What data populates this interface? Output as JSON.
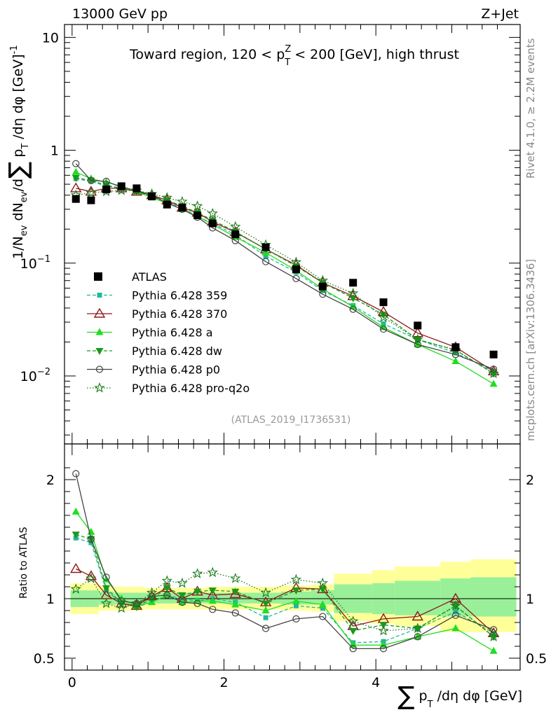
{
  "header": {
    "left": "13000 GeV pp",
    "right": "Z+Jet"
  },
  "side_labels": {
    "top": "Rivet 4.1.0, ≥ 2.2M events",
    "bottom": "mcplots.cern.ch [arXiv:1306.3436]"
  },
  "chart_data": [
    {
      "type": "line",
      "yscale": "log",
      "title": "Toward region, 120 < pT^Z < 200 [GeV], high thrust",
      "title_parts": {
        "lead": "Toward region, 120 < p",
        "sup": "Z",
        "sub": "T",
        "tail": " < 200 [GeV], high thrust"
      },
      "ylabel": "1/N_ev dN_ev/d∑ p_T /dη dφ [GeV]^-1",
      "ylabel_parts": {
        "a": "1/N",
        "a_sub": "ev",
        "b": " dN",
        "b_sub": "ev",
        "c": "/d",
        "sum": "∑",
        "d": " p",
        "d_sub": "T",
        "e": " /dη dφ  [GeV]",
        "e_sup": "-1"
      },
      "analysis_id": "(ATLAS_2019_I1736531)",
      "xlim": [
        -0.1,
        5.9
      ],
      "ylim": [
        0.0025,
        13
      ],
      "y_tick_labels": [
        {
          "value": 0.01,
          "base": "10",
          "exp": "−2"
        },
        {
          "value": 0.1,
          "base": "10",
          "exp": "−1"
        },
        {
          "value": 1,
          "base": "1",
          "exp": ""
        },
        {
          "value": 10,
          "base": "10",
          "exp": ""
        }
      ],
      "x": [
        0.05,
        0.25,
        0.45,
        0.65,
        0.85,
        1.05,
        1.25,
        1.45,
        1.65,
        1.85,
        2.15,
        2.55,
        2.95,
        3.3,
        3.7,
        4.1,
        4.55,
        5.05,
        5.55
      ],
      "atlas": [
        0.37,
        0.36,
        0.45,
        0.48,
        0.46,
        0.39,
        0.33,
        0.31,
        0.265,
        0.225,
        0.18,
        0.138,
        0.088,
        0.062,
        0.067,
        0.045,
        0.028,
        0.018,
        0.0155
      ],
      "legend": {
        "position": "left",
        "entries": [
          "ATLAS",
          "Pythia 6.428 359",
          "Pythia 6.428 370",
          "Pythia 6.428 a",
          "Pythia 6.428 dw",
          "Pythia 6.428 p0",
          "Pythia 6.428 pro-q2o"
        ]
      },
      "series": [
        {
          "name": "Pythia 6.428 359",
          "color": "#1fb89a",
          "dash": "5,3",
          "marker": "square-small",
          "values": [
            0.56,
            0.53,
            0.48,
            0.46,
            0.43,
            0.38,
            0.34,
            0.31,
            0.26,
            0.225,
            0.178,
            0.115,
            0.083,
            0.057,
            0.042,
            0.029,
            0.021,
            0.016,
            0.011
          ]
        },
        {
          "name": "Pythia 6.428 370",
          "color": "#8b1a1a",
          "dash": "",
          "marker": "triangle-open",
          "values": [
            0.46,
            0.43,
            0.46,
            0.46,
            0.43,
            0.4,
            0.36,
            0.31,
            0.28,
            0.232,
            0.188,
            0.133,
            0.096,
            0.067,
            0.051,
            0.037,
            0.024,
            0.018,
            0.011
          ]
        },
        {
          "name": "Pythia 6.428 a",
          "color": "#22dd22",
          "dash": "",
          "marker": "triangle-filled",
          "values": [
            0.64,
            0.56,
            0.52,
            0.48,
            0.43,
            0.38,
            0.34,
            0.3,
            0.26,
            0.22,
            0.17,
            0.124,
            0.086,
            0.059,
            0.041,
            0.027,
            0.019,
            0.0135,
            0.0085
          ]
        },
        {
          "name": "Pythia 6.428 dw",
          "color": "#1a9a1a",
          "dash": "5,3",
          "marker": "triangle-down",
          "values": [
            0.57,
            0.54,
            0.49,
            0.46,
            0.43,
            0.39,
            0.36,
            0.32,
            0.28,
            0.24,
            0.19,
            0.133,
            0.094,
            0.067,
            0.049,
            0.035,
            0.021,
            0.017,
            0.0105
          ]
        },
        {
          "name": "Pythia 6.428 p0",
          "color": "#444444",
          "dash": "",
          "marker": "circle-open",
          "values": [
            0.76,
            0.54,
            0.53,
            0.47,
            0.44,
            0.4,
            0.34,
            0.3,
            0.255,
            0.205,
            0.158,
            0.103,
            0.073,
            0.053,
            0.039,
            0.026,
            0.019,
            0.0155,
            0.0115
          ]
        },
        {
          "name": "Pythia 6.428 pro-q2o",
          "color": "#1a7a1a",
          "dash": "1.5,2.5",
          "marker": "star-open",
          "values": [
            0.4,
            0.42,
            0.43,
            0.44,
            0.44,
            0.41,
            0.38,
            0.35,
            0.32,
            0.275,
            0.21,
            0.145,
            0.102,
            0.07,
            0.054,
            0.033,
            0.021,
            0.017,
            0.0105
          ]
        }
      ]
    },
    {
      "type": "line",
      "title": "",
      "ylabel": "Ratio to ATLAS",
      "xlabel": "∑ p_T /dη dφ [GeV]",
      "xlabel_parts": {
        "sum": "∑",
        "a": " p",
        "a_sub": "T",
        "b": " /dη dφ [GeV]"
      },
      "xlim": [
        -0.1,
        5.9
      ],
      "ylim": [
        0.4,
        2.3
      ],
      "x_ticks": [
        0,
        2,
        4
      ],
      "y_tick_labels": [
        0.5,
        1,
        2
      ],
      "band_edges": [
        -0.02,
        0.15,
        0.35,
        0.55,
        0.75,
        0.95,
        1.15,
        1.35,
        1.55,
        1.75,
        1.95,
        2.35,
        2.75,
        3.15,
        3.45,
        3.95,
        4.25,
        4.85,
        5.25,
        5.85
      ],
      "band_yellow": [
        [
          0.87,
          1.13
        ],
        [
          0.87,
          1.13
        ],
        [
          0.9,
          1.11
        ],
        [
          0.9,
          1.1
        ],
        [
          0.9,
          1.1
        ],
        [
          0.91,
          1.09
        ],
        [
          0.91,
          1.09
        ],
        [
          0.91,
          1.09
        ],
        [
          0.91,
          1.09
        ],
        [
          0.91,
          1.1
        ],
        [
          0.91,
          1.1
        ],
        [
          0.91,
          1.1
        ],
        [
          0.9,
          1.11
        ],
        [
          0.89,
          1.12
        ],
        [
          0.81,
          1.21
        ],
        [
          0.79,
          1.24
        ],
        [
          0.77,
          1.27
        ],
        [
          0.72,
          1.31
        ],
        [
          0.72,
          1.33
        ]
      ],
      "band_green": [
        [
          0.93,
          1.07
        ],
        [
          0.93,
          1.07
        ],
        [
          0.95,
          1.06
        ],
        [
          0.95,
          1.05
        ],
        [
          0.95,
          1.05
        ],
        [
          0.96,
          1.05
        ],
        [
          0.96,
          1.05
        ],
        [
          0.96,
          1.05
        ],
        [
          0.96,
          1.05
        ],
        [
          0.96,
          1.05
        ],
        [
          0.96,
          1.05
        ],
        [
          0.96,
          1.05
        ],
        [
          0.95,
          1.06
        ],
        [
          0.95,
          1.07
        ],
        [
          0.88,
          1.12
        ],
        [
          0.87,
          1.13
        ],
        [
          0.86,
          1.15
        ],
        [
          0.85,
          1.17
        ],
        [
          0.85,
          1.18
        ]
      ],
      "series": [
        {
          "name": "Pythia 6.428 359",
          "values": [
            1.51,
            1.47,
            1.07,
            0.96,
            0.93,
            0.97,
            1.03,
            1.0,
            0.98,
            1.0,
            0.97,
            0.84,
            0.94,
            0.92,
            0.63,
            0.64,
            0.75,
            0.89,
            0.71
          ]
        },
        {
          "name": "Pythia 6.428 370",
          "values": [
            1.25,
            1.19,
            1.03,
            0.96,
            0.94,
            1.02,
            1.09,
            1.0,
            1.06,
            1.03,
            1.04,
            0.97,
            1.09,
            1.08,
            0.77,
            0.83,
            0.85,
            1.0,
            0.71
          ]
        },
        {
          "name": "Pythia 6.428 a",
          "values": [
            1.73,
            1.56,
            1.16,
            1.0,
            0.94,
            0.97,
            1.03,
            0.97,
            0.98,
            0.98,
            0.95,
            0.9,
            0.98,
            0.95,
            0.61,
            0.61,
            0.68,
            0.75,
            0.56
          ]
        },
        {
          "name": "Pythia 6.428 dw",
          "values": [
            1.54,
            1.5,
            1.09,
            0.96,
            0.93,
            1.0,
            1.09,
            1.03,
            1.06,
            1.07,
            1.06,
            0.96,
            1.07,
            1.08,
            0.73,
            0.78,
            0.75,
            0.94,
            0.68
          ]
        },
        {
          "name": "Pythia 6.428 p0",
          "values": [
            2.05,
            1.5,
            1.18,
            0.98,
            0.96,
            1.02,
            1.03,
            0.97,
            0.96,
            0.91,
            0.88,
            0.75,
            0.83,
            0.85,
            0.58,
            0.58,
            0.68,
            0.86,
            0.74
          ]
        },
        {
          "name": "Pythia 6.428 pro-q2o",
          "values": [
            1.08,
            1.17,
            0.96,
            0.92,
            0.96,
            1.05,
            1.15,
            1.13,
            1.21,
            1.22,
            1.17,
            1.05,
            1.16,
            1.13,
            0.81,
            0.73,
            0.75,
            0.94,
            0.68
          ]
        }
      ]
    }
  ]
}
